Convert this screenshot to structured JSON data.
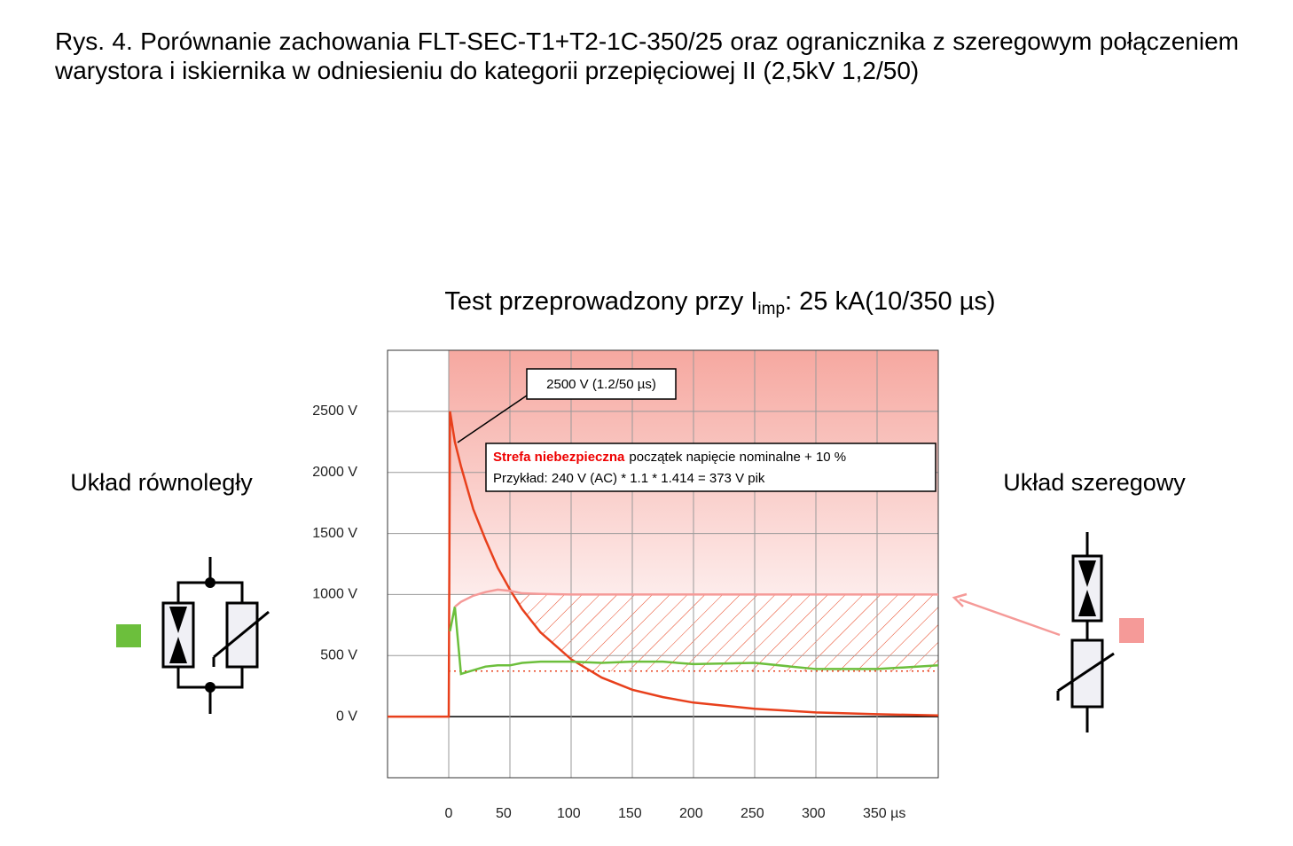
{
  "title": "Rys. 4. Porównanie zachowania FLT-SEC-T1+T2-1C-350/25 oraz ogranicznika z szeregowym połączeniem warystora i iskiernika w odniesieniu do kategorii przepięciowej II (2,5kV 1,2/50)",
  "chart_data": {
    "type": "line",
    "title_parts": [
      "Test  przeprowadzony przy I",
      "imp",
      ": 25 kA(10/350 µs)"
    ],
    "annotations": {
      "peak": "2500 V (1.2/50 µs)",
      "zone_name": "Strefa niebezpieczna",
      "zone_text": "początek napięcie nominalne + 10 %",
      "example": "Przykład: 240 V (AC) * 1.1 * 1.414 = 373 V pik"
    },
    "danger_threshold": 373,
    "x": [
      -50,
      0,
      1,
      5,
      10,
      20,
      30,
      40,
      50,
      60,
      75,
      100,
      125,
      150,
      175,
      200,
      250,
      300,
      350,
      400
    ],
    "series": [
      {
        "color": "#e8401c",
        "values": [
          0,
          0,
          2500,
          2250,
          2050,
          1700,
          1450,
          1220,
          1040,
          880,
          690,
          470,
          320,
          220,
          160,
          115,
          65,
          35,
          20,
          10
        ]
      },
      {
        "name": "Układ równoległy",
        "color": "#6cbf3c",
        "values": [
          null,
          null,
          700,
          900,
          350,
          380,
          410,
          420,
          420,
          440,
          450,
          450,
          440,
          450,
          450,
          430,
          440,
          390,
          390,
          420
        ]
      },
      {
        "name": "Układ szeregowy",
        "color": "#f59a98",
        "values": [
          null,
          null,
          null,
          900,
          940,
          990,
          1020,
          1040,
          1030,
          1010,
          1005,
          1000,
          1000,
          1000,
          1000,
          1000,
          1000,
          1000,
          1000,
          1000
        ]
      }
    ],
    "xlim": [
      -50,
      400
    ],
    "ylim": [
      -500,
      3000
    ],
    "xticks": [
      0,
      50,
      100,
      150,
      200,
      250,
      300,
      {
        "value": 350,
        "label": "350 µs"
      }
    ],
    "yticks": [
      {
        "value": 0,
        "label": "0 V"
      },
      {
        "value": 500,
        "label": "500 V"
      },
      {
        "value": 1000,
        "label": "1000 V"
      },
      {
        "value": 1500,
        "label": "1500 V"
      },
      {
        "value": 2000,
        "label": "2000 V"
      },
      {
        "value": 2500,
        "label": "2500 V"
      }
    ],
    "grid": true
  }
}
